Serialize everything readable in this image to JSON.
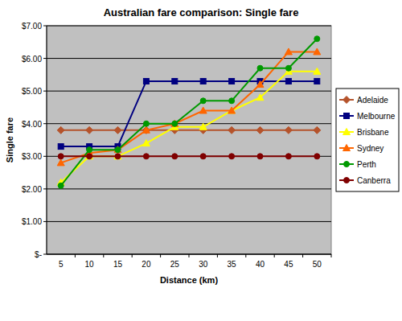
{
  "chart_data": {
    "type": "line",
    "title": "Australian fare comparison: Single fare",
    "x_label": "Distance (km)",
    "y_label": "Single fare",
    "categories": [
      "5",
      "10",
      "15",
      "20",
      "25",
      "30",
      "35",
      "40",
      "45",
      "50"
    ],
    "series": [
      {
        "name": "Adelaide",
        "color": "#b5532b",
        "marker": "diamond",
        "values": [
          3.8,
          3.8,
          3.8,
          3.8,
          3.8,
          3.8,
          3.8,
          3.8,
          3.8,
          3.8
        ]
      },
      {
        "name": "Melbourne",
        "color": "#000080",
        "marker": "square",
        "values": [
          3.3,
          3.3,
          3.3,
          5.3,
          5.3,
          5.3,
          5.3,
          5.3,
          5.3,
          5.3
        ]
      },
      {
        "name": "Brisbane",
        "color": "#ffff00",
        "marker": "triangle",
        "values": [
          2.2,
          3.0,
          3.0,
          3.4,
          3.9,
          3.9,
          4.4,
          4.8,
          5.6,
          5.6
        ]
      },
      {
        "name": "Sydney",
        "color": "#ff6600",
        "marker": "triangle",
        "values": [
          2.8,
          3.1,
          3.2,
          3.8,
          4.0,
          4.4,
          4.4,
          5.2,
          6.2,
          6.2
        ]
      },
      {
        "name": "Perth",
        "color": "#009900",
        "marker": "circle",
        "values": [
          2.1,
          3.2,
          3.2,
          4.0,
          4.0,
          4.7,
          4.7,
          5.7,
          5.7,
          6.6
        ]
      },
      {
        "name": "Canberra",
        "color": "#800000",
        "marker": "circle",
        "values": [
          3.0,
          3.0,
          3.0,
          3.0,
          3.0,
          3.0,
          3.0,
          3.0,
          3.0,
          3.0
        ]
      }
    ],
    "ylim": [
      0,
      7
    ],
    "yticks": [
      {
        "value": 0,
        "label": "$-"
      },
      {
        "value": 1,
        "label": "$1.00"
      },
      {
        "value": 2,
        "label": "$2.00"
      },
      {
        "value": 3,
        "label": "$3.00"
      },
      {
        "value": 4,
        "label": "$4.00"
      },
      {
        "value": 5,
        "label": "$5.00"
      },
      {
        "value": 6,
        "label": "$6.00"
      },
      {
        "value": 7,
        "label": "$7.00"
      }
    ],
    "grid": true,
    "legend": "right"
  }
}
